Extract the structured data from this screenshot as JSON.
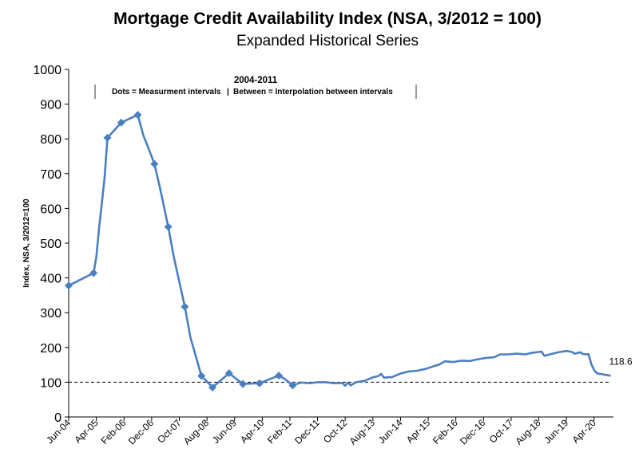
{
  "chart_data": {
    "type": "line",
    "title": "Mortgage Credit Availability Index (NSA, 3/2012 = 100)",
    "subtitle": "Expanded Historical Series",
    "ylabel": "Index, NSA, 3/2012=100",
    "xlabel": "",
    "ylim": [
      0,
      1000
    ],
    "yticks": [
      0,
      100,
      200,
      300,
      400,
      500,
      600,
      700,
      800,
      900,
      1000
    ],
    "xtick_labels": [
      "Jun-04",
      "Apr-05",
      "Feb-06",
      "Dec-06",
      "Oct-07",
      "Aug-08",
      "Jun-09",
      "Apr-10",
      "Feb-11",
      "Dec-11",
      "Oct-12",
      "Aug-13",
      "Jun-14",
      "Apr-15",
      "Feb-16",
      "Dec-16",
      "Oct-17",
      "Aug-18",
      "Jun-19",
      "Apr-20"
    ],
    "x_start": "Jun-04",
    "x_end": "Oct-20",
    "grid": false,
    "reference_line": {
      "y": 100,
      "style": "dashed"
    },
    "annotation": {
      "heading": "2004-2011",
      "left_text": "Dots = Measurment intervals",
      "separator": "|",
      "right_text": "Between = Interpolation between intervals"
    },
    "end_label": "118.6",
    "line_color": "#4a7fc1",
    "series": [
      {
        "markers": [
          [
            "Jun-04",
            378
          ],
          [
            "Mar-05",
            414
          ],
          [
            "Aug-05",
            803
          ],
          [
            "Jan-06",
            847
          ],
          [
            "Jul-06",
            869
          ],
          [
            "Jan-07",
            728
          ],
          [
            "Jun-07",
            547
          ],
          [
            "Dec-07",
            317
          ],
          [
            "Jun-08",
            118
          ],
          [
            "Oct-08",
            85
          ],
          [
            "Apr-09",
            126
          ],
          [
            "Sep-09",
            95
          ],
          [
            "Mar-10",
            97
          ],
          [
            "Oct-10",
            119
          ],
          [
            "Mar-11",
            91
          ]
        ],
        "values": [
          [
            "Jun-04",
            378
          ],
          [
            "Mar-05",
            414
          ],
          [
            "Apr-05",
            460
          ],
          [
            "May-05",
            545
          ],
          [
            "Jun-05",
            615
          ],
          [
            "Jul-05",
            690
          ],
          [
            "Aug-05",
            803
          ],
          [
            "Jan-06",
            847
          ],
          [
            "Jul-06",
            869
          ],
          [
            "Sep-06",
            810
          ],
          [
            "Nov-06",
            770
          ],
          [
            "Jan-07",
            728
          ],
          [
            "Mar-07",
            660
          ],
          [
            "Jun-07",
            547
          ],
          [
            "Aug-07",
            460
          ],
          [
            "Dec-07",
            317
          ],
          [
            "Feb-08",
            230
          ],
          [
            "Jun-08",
            118
          ],
          [
            "Oct-08",
            85
          ],
          [
            "Apr-09",
            126
          ],
          [
            "Sep-09",
            95
          ],
          [
            "Mar-10",
            97
          ],
          [
            "Oct-10",
            119
          ],
          [
            "Dec-10",
            110
          ],
          [
            "Mar-11",
            91
          ],
          [
            "Jun-11",
            99
          ],
          [
            "Sep-11",
            97
          ],
          [
            "Dec-11",
            100
          ],
          [
            "Mar-12",
            100
          ],
          [
            "Jun-12",
            97
          ],
          [
            "Sep-12",
            98
          ],
          [
            "Oct-12",
            90
          ],
          [
            "Nov-12",
            99
          ],
          [
            "Dec-12",
            91
          ],
          [
            "Feb-13",
            100
          ],
          [
            "May-13",
            104
          ],
          [
            "Aug-13",
            114
          ],
          [
            "Oct-13",
            118
          ],
          [
            "Nov-13",
            124
          ],
          [
            "Dec-13",
            113
          ],
          [
            "Mar-14",
            115
          ],
          [
            "Jun-14",
            125
          ],
          [
            "Sep-14",
            131
          ],
          [
            "Dec-14",
            133
          ],
          [
            "Mar-15",
            138
          ],
          [
            "Jun-15",
            146
          ],
          [
            "Aug-15",
            151
          ],
          [
            "Oct-15",
            160
          ],
          [
            "Jan-16",
            158
          ],
          [
            "Apr-16",
            162
          ],
          [
            "Jul-16",
            161
          ],
          [
            "Oct-16",
            166
          ],
          [
            "Jan-17",
            170
          ],
          [
            "Apr-17",
            172
          ],
          [
            "Jun-17",
            180
          ],
          [
            "Sep-17",
            180
          ],
          [
            "Dec-17",
            182
          ],
          [
            "Mar-18",
            180
          ],
          [
            "Jun-18",
            185
          ],
          [
            "Sep-18",
            188
          ],
          [
            "Oct-18",
            176
          ],
          [
            "Dec-18",
            180
          ],
          [
            "Mar-19",
            186
          ],
          [
            "Jun-19",
            190
          ],
          [
            "Aug-19",
            187
          ],
          [
            "Sep-19",
            182
          ],
          [
            "Nov-19",
            186
          ],
          [
            "Dec-19",
            181
          ],
          [
            "Jan-20",
            180
          ],
          [
            "Feb-20",
            181
          ],
          [
            "Mar-20",
            152
          ],
          [
            "Apr-20",
            135
          ],
          [
            "May-20",
            126
          ],
          [
            "Jun-20",
            124
          ],
          [
            "Jul-20",
            123
          ],
          [
            "Aug-20",
            121
          ],
          [
            "Sep-20",
            120
          ],
          [
            "Oct-20",
            118.6
          ]
        ]
      }
    ]
  }
}
